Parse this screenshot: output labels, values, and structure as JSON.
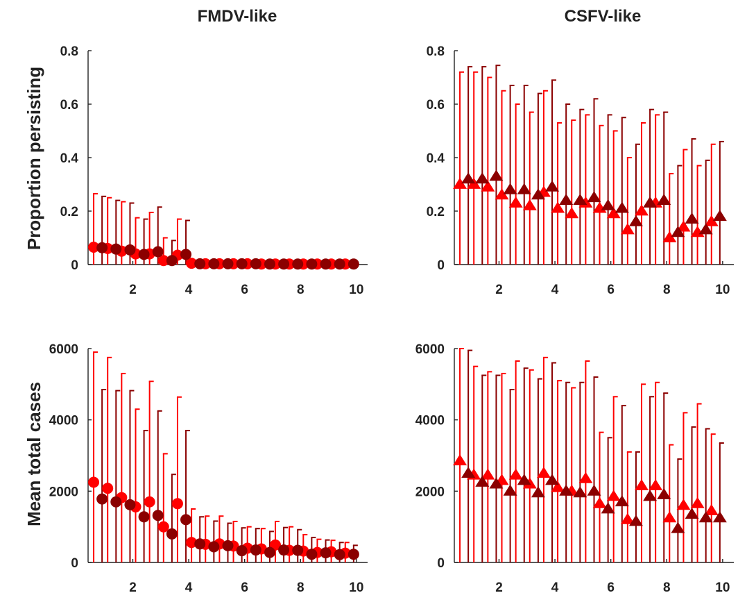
{
  "colors": {
    "bright": "#ff0000",
    "dark": "#8b0000",
    "axis": "#222222"
  },
  "chart_data": [
    {
      "type": "scatter",
      "title": "FMDV-like",
      "xlabel": "",
      "ylabel": "Proportion persisting",
      "marker": "circle",
      "xlim": [
        0.4,
        10.4
      ],
      "ylim": [
        0,
        0.8
      ],
      "xticks": [
        "2",
        "4",
        "6",
        "8",
        "10"
      ],
      "yticks": [
        "0",
        "0.2",
        "0.4",
        "0.6",
        "0.8"
      ],
      "series": [
        {
          "color": "#ff0000",
          "x": [
            0.6,
            1.1,
            1.6,
            2.1,
            2.6,
            3.1,
            3.6,
            4.1,
            4.6,
            5.1,
            5.6,
            6.1,
            6.6,
            7.1,
            7.6,
            8.1,
            8.6,
            9.1,
            9.6
          ],
          "y": [
            0.065,
            0.06,
            0.05,
            0.04,
            0.04,
            0.015,
            0.035,
            0.005,
            0.003,
            0.003,
            0.003,
            0.003,
            0.002,
            0.002,
            0.002,
            0.002,
            0.002,
            0.002,
            0.002
          ],
          "upper": [
            0.265,
            0.25,
            0.235,
            0.175,
            0.195,
            0.1,
            0.17,
            0.01,
            0.008,
            0.008,
            0.008,
            0.008,
            0.006,
            0.006,
            0.006,
            0.006,
            0.006,
            0.006,
            0.006
          ]
        },
        {
          "color": "#8b0000",
          "x": [
            0.9,
            1.4,
            1.9,
            2.4,
            2.9,
            3.4,
            3.9,
            4.4,
            4.9,
            5.4,
            5.9,
            6.4,
            6.9,
            7.4,
            7.9,
            8.4,
            8.9,
            9.4,
            9.9
          ],
          "y": [
            0.063,
            0.058,
            0.055,
            0.038,
            0.048,
            0.015,
            0.038,
            0.003,
            0.003,
            0.003,
            0.003,
            0.003,
            0.002,
            0.002,
            0.002,
            0.002,
            0.002,
            0.002,
            0.002
          ],
          "upper": [
            0.255,
            0.24,
            0.23,
            0.17,
            0.215,
            0.09,
            0.165,
            0.008,
            0.008,
            0.008,
            0.008,
            0.008,
            0.006,
            0.006,
            0.006,
            0.006,
            0.006,
            0.006,
            0.006
          ]
        }
      ]
    },
    {
      "type": "scatter",
      "title": "CSFV-like",
      "xlabel": "",
      "ylabel": "",
      "marker": "triangle",
      "xlim": [
        0.4,
        10.4
      ],
      "ylim": [
        0,
        0.8
      ],
      "xticks": [
        "2",
        "4",
        "6",
        "8",
        "10"
      ],
      "yticks": [
        "0",
        "0.2",
        "0.4",
        "0.6",
        "0.8"
      ],
      "series": [
        {
          "color": "#ff0000",
          "x": [
            0.6,
            1.1,
            1.6,
            2.1,
            2.6,
            3.1,
            3.6,
            4.1,
            4.6,
            5.1,
            5.6,
            6.1,
            6.6,
            7.1,
            7.6,
            8.1,
            8.6,
            9.1,
            9.6
          ],
          "y": [
            0.3,
            0.3,
            0.29,
            0.26,
            0.23,
            0.22,
            0.27,
            0.21,
            0.19,
            0.23,
            0.21,
            0.19,
            0.13,
            0.2,
            0.23,
            0.1,
            0.14,
            0.12,
            0.16
          ],
          "upper": [
            0.72,
            0.72,
            0.7,
            0.65,
            0.6,
            0.57,
            0.65,
            0.53,
            0.54,
            0.56,
            0.52,
            0.5,
            0.4,
            0.53,
            0.56,
            0.34,
            0.43,
            0.37,
            0.45
          ]
        },
        {
          "color": "#8b0000",
          "x": [
            0.9,
            1.4,
            1.9,
            2.4,
            2.9,
            3.4,
            3.9,
            4.4,
            4.9,
            5.4,
            5.9,
            6.4,
            6.9,
            7.4,
            7.9,
            8.4,
            8.9,
            9.4,
            9.9
          ],
          "y": [
            0.32,
            0.32,
            0.33,
            0.28,
            0.28,
            0.26,
            0.29,
            0.24,
            0.24,
            0.25,
            0.22,
            0.21,
            0.16,
            0.23,
            0.24,
            0.12,
            0.17,
            0.13,
            0.18
          ],
          "upper": [
            0.74,
            0.74,
            0.745,
            0.67,
            0.67,
            0.64,
            0.69,
            0.6,
            0.58,
            0.62,
            0.56,
            0.55,
            0.45,
            0.58,
            0.57,
            0.37,
            0.47,
            0.39,
            0.46
          ]
        }
      ]
    },
    {
      "type": "scatter",
      "title": "",
      "xlabel": "",
      "ylabel": "Mean total cases",
      "marker": "circle",
      "xlim": [
        0.4,
        10.4
      ],
      "ylim": [
        0,
        6000
      ],
      "xticks": [
        "2",
        "4",
        "6",
        "8",
        "10"
      ],
      "yticks": [
        "0",
        "2000",
        "4000",
        "6000"
      ],
      "series": [
        {
          "color": "#ff0000",
          "x": [
            0.6,
            1.1,
            1.6,
            2.1,
            2.6,
            3.1,
            3.6,
            4.1,
            4.6,
            5.1,
            5.6,
            6.1,
            6.6,
            7.1,
            7.6,
            8.1,
            8.6,
            9.1,
            9.6
          ],
          "y": [
            2250,
            2080,
            1820,
            1560,
            1700,
            1000,
            1650,
            560,
            510,
            520,
            460,
            400,
            380,
            490,
            340,
            320,
            280,
            300,
            260
          ],
          "upper": [
            5900,
            5750,
            5300,
            4300,
            5080,
            3050,
            4640,
            1500,
            1300,
            1300,
            1150,
            1000,
            950,
            1150,
            1000,
            780,
            650,
            620,
            560
          ]
        },
        {
          "color": "#8b0000",
          "x": [
            0.9,
            1.4,
            1.9,
            2.4,
            2.9,
            3.4,
            3.9,
            4.4,
            4.9,
            5.4,
            5.9,
            6.4,
            6.9,
            7.4,
            7.9,
            8.4,
            8.9,
            9.4,
            9.9
          ],
          "y": [
            1780,
            1700,
            1620,
            1280,
            1320,
            800,
            1200,
            520,
            440,
            470,
            330,
            350,
            280,
            350,
            340,
            230,
            270,
            220,
            230
          ],
          "upper": [
            4850,
            4820,
            4820,
            3700,
            4250,
            2470,
            3700,
            1280,
            1160,
            1100,
            970,
            950,
            870,
            980,
            920,
            700,
            630,
            560,
            480
          ]
        }
      ]
    },
    {
      "type": "scatter",
      "title": "",
      "xlabel": "",
      "ylabel": "",
      "marker": "triangle",
      "xlim": [
        0.4,
        10.4
      ],
      "ylim": [
        0,
        6000
      ],
      "xticks": [
        "2",
        "4",
        "6",
        "8",
        "10"
      ],
      "yticks": [
        "0",
        "2000",
        "4000",
        "6000"
      ],
      "series": [
        {
          "color": "#ff0000",
          "x": [
            0.6,
            1.1,
            1.6,
            2.1,
            2.6,
            3.1,
            3.6,
            4.1,
            4.6,
            5.1,
            5.6,
            6.1,
            6.6,
            7.1,
            7.6,
            8.1,
            8.6,
            9.1,
            9.6
          ],
          "y": [
            2850,
            2450,
            2450,
            2300,
            2450,
            2200,
            2500,
            2100,
            2000,
            2350,
            1650,
            1850,
            1200,
            2150,
            2150,
            1250,
            1600,
            1650,
            1450
          ],
          "upper": [
            6000,
            5500,
            5350,
            5300,
            5650,
            5400,
            5750,
            5100,
            4900,
            5650,
            3650,
            4650,
            3100,
            5000,
            5050,
            3300,
            4200,
            4450,
            3600
          ]
        },
        {
          "color": "#8b0000",
          "x": [
            0.9,
            1.4,
            1.9,
            2.4,
            2.9,
            3.4,
            3.9,
            4.4,
            4.9,
            5.4,
            5.9,
            6.4,
            6.9,
            7.4,
            7.9,
            8.4,
            8.9,
            9.4,
            9.9
          ],
          "y": [
            2500,
            2250,
            2200,
            2000,
            2300,
            1950,
            2300,
            2000,
            1950,
            2000,
            1500,
            1700,
            1150,
            1850,
            1900,
            950,
            1350,
            1250,
            1250
          ],
          "upper": [
            5950,
            5250,
            5250,
            4850,
            5450,
            5150,
            5600,
            5050,
            5050,
            5200,
            3500,
            4400,
            3100,
            4650,
            4750,
            2900,
            3800,
            3750,
            3350
          ]
        }
      ]
    }
  ]
}
